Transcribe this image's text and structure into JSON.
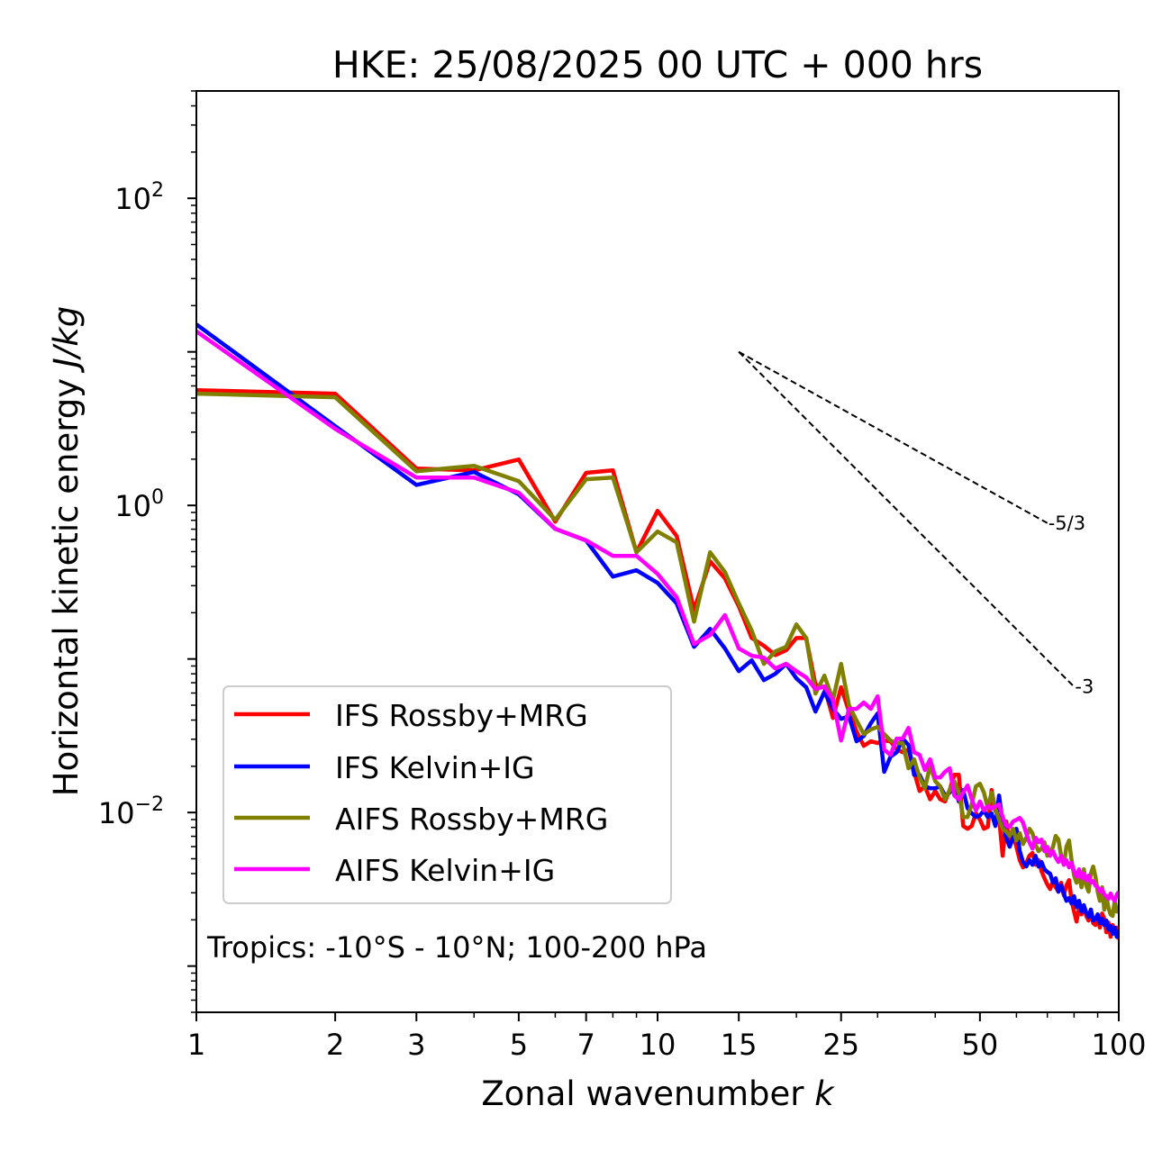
{
  "chart_data": {
    "type": "line",
    "title": "HKE: 25/08/2025 00 UTC + 000 hrs",
    "xlabel": "Zonal wavenumber",
    "xlabel_italic": "k",
    "ylabel": "Horizontal kinetic energy",
    "ylabel_italic": "J/kg",
    "xscale": "log",
    "yscale": "log",
    "xlim": [
      1,
      100
    ],
    "ylim": [
      0.0005,
      500
    ],
    "grid": false,
    "x_ticks": [
      {
        "value": 1,
        "label": "1"
      },
      {
        "value": 2,
        "label": "2"
      },
      {
        "value": 3,
        "label": "3"
      },
      {
        "value": 5,
        "label": "5"
      },
      {
        "value": 7,
        "label": "7"
      },
      {
        "value": 10,
        "label": "10"
      },
      {
        "value": 15,
        "label": "15"
      },
      {
        "value": 25,
        "label": "25"
      },
      {
        "value": 50,
        "label": "50"
      },
      {
        "value": 100,
        "label": "100"
      }
    ],
    "x_minor_ticks": [
      4,
      6,
      8,
      9,
      20,
      30,
      40,
      60,
      70,
      80,
      90
    ],
    "y_ticks": [
      {
        "value": 100,
        "base": "10",
        "exp": "2"
      },
      {
        "value": 1,
        "base": "10",
        "exp": "0"
      },
      {
        "value": 0.01,
        "base": "10",
        "exp": "−2"
      }
    ],
    "annotation": "Tropics: -10°S - 10°N; 100-200 hPa",
    "legend_position": "lower-left",
    "reference_slopes": [
      {
        "label": "-5/3",
        "slope": -1.6667,
        "k_start": 15,
        "k_end": 70,
        "y_start": 10
      },
      {
        "label": "-3",
        "slope": -3,
        "k_start": 15,
        "k_end": 80,
        "y_start": 10
      }
    ],
    "x": [
      1,
      2,
      3,
      4,
      5,
      6,
      7,
      8,
      9,
      10,
      11,
      12,
      13,
      14,
      15,
      16,
      17,
      18,
      19,
      20,
      21,
      22,
      23,
      24,
      25,
      26,
      27,
      28,
      29,
      30,
      31,
      32,
      33,
      34,
      35,
      36,
      37,
      38,
      39,
      40,
      41,
      42,
      43,
      44,
      45,
      46,
      47,
      48,
      49,
      50,
      51,
      52,
      53,
      54,
      55,
      56,
      57,
      58,
      59,
      60,
      61,
      62,
      63,
      64,
      65,
      66,
      67,
      68,
      69,
      70,
      71,
      72,
      73,
      74,
      75,
      76,
      77,
      78,
      79,
      80,
      81,
      82,
      83,
      84,
      85,
      86,
      87,
      88,
      89,
      90,
      91,
      92,
      93,
      94,
      95,
      96,
      97,
      98,
      99,
      100
    ],
    "series": [
      {
        "name": "IFS Rossby+MRG",
        "color": "#ff0000",
        "values": [
          5.63,
          5.34,
          1.74,
          1.69,
          1.99,
          0.784,
          1.63,
          1.69,
          0.495,
          0.922,
          0.632,
          0.209,
          0.433,
          0.335,
          0.22,
          0.137,
          0.122,
          0.106,
          0.114,
          0.137,
          0.137,
          0.068,
          0.0654,
          0.0413,
          0.0654,
          0.0454,
          0.0337,
          0.0272,
          0.0291,
          0.0283,
          0.0294,
          0.0291,
          0.0257,
          0.0247,
          0.0257,
          0.0184,
          0.0138,
          0.0148,
          0.0122,
          0.0138,
          0.0122,
          0.0118,
          0.014,
          0.0176,
          0.0176,
          0.00817,
          0.00784,
          0.00817,
          0.00987,
          0.00897,
          0.00784,
          0.00806,
          0.014,
          0.0103,
          0.00935,
          0.00523,
          0.00874,
          0.00623,
          0.00713,
          0.00598,
          0.00489,
          0.00439,
          0.0047,
          0.00523,
          0.00545,
          0.00457,
          0.00489,
          0.00416,
          0.00373,
          0.0034,
          0.00317,
          0.00358,
          0.00326,
          0.00305,
          0.00349,
          0.00289,
          0.00335,
          0.00363,
          0.00266,
          0.00226,
          0.00195,
          0.00239,
          0.00217,
          0.00249,
          0.00212,
          0.00198,
          0.00233,
          0.0019,
          0.00185,
          0.00209,
          0.00178,
          0.0022,
          0.00203,
          0.00166,
          0.00192,
          0.00155,
          0.00185,
          0.00171,
          0.00178,
          0.00149
        ]
      },
      {
        "name": "IFS Kelvin+IG",
        "color": "#0000ff",
        "values": [
          15.1,
          3.28,
          1.36,
          1.65,
          1.18,
          0.704,
          0.591,
          0.344,
          0.378,
          0.313,
          0.23,
          0.12,
          0.157,
          0.117,
          0.0833,
          0.098,
          0.0728,
          0.08,
          0.0929,
          0.0748,
          0.0654,
          0.0454,
          0.0611,
          0.0473,
          0.0407,
          0.0424,
          0.0291,
          0.0315,
          0.0381,
          0.0442,
          0.0184,
          0.0231,
          0.0247,
          0.0303,
          0.0275,
          0.0176,
          0.0176,
          0.0148,
          0.0144,
          0.0144,
          0.0148,
          0.0129,
          0.0135,
          0.0148,
          0.0118,
          0.014,
          0.0107,
          0.00987,
          0.00935,
          0.0096,
          0.0103,
          0.00935,
          0.00987,
          0.00817,
          0.0129,
          0.00861,
          0.00685,
          0.00598,
          0.00685,
          0.00784,
          0.0056,
          0.00476,
          0.00445,
          0.00489,
          0.00457,
          0.00523,
          0.00445,
          0.00476,
          0.00427,
          0.0041,
          0.00399,
          0.00349,
          0.00373,
          0.00305,
          0.00335,
          0.00297,
          0.00266,
          0.00277,
          0.00256,
          0.00285,
          0.00242,
          0.00266,
          0.00226,
          0.00249,
          0.00223,
          0.00209,
          0.00233,
          0.00198,
          0.00203,
          0.00217,
          0.0019,
          0.00203,
          0.00185,
          0.00198,
          0.00173,
          0.00182,
          0.00162,
          0.00178,
          0.00155,
          0.00171
        ]
      },
      {
        "name": "AIFS Rossby+MRG",
        "color": "#808000",
        "values": [
          5.34,
          5.06,
          1.67,
          1.81,
          1.44,
          0.806,
          1.48,
          1.52,
          0.495,
          0.676,
          0.575,
          0.175,
          0.495,
          0.368,
          0.23,
          0.153,
          0.0929,
          0.112,
          0.12,
          0.168,
          0.137,
          0.0595,
          0.0779,
          0.0541,
          0.0929,
          0.0499,
          0.0397,
          0.0324,
          0.0347,
          0.0361,
          0.0324,
          0.0294,
          0.0283,
          0.0283,
          0.0194,
          0.0222,
          0.0169,
          0.0144,
          0.0202,
          0.016,
          0.0148,
          0.0122,
          0.014,
          0.016,
          0.0135,
          0.00935,
          0.00935,
          0.0113,
          0.0148,
          0.0154,
          0.0135,
          0.0107,
          0.0135,
          0.0106,
          0.00897,
          0.00784,
          0.00753,
          0.00704,
          0.00784,
          0.00658,
          0.00733,
          0.00623,
          0.00685,
          0.00784,
          0.00733,
          0.00615,
          0.0056,
          0.00582,
          0.0064,
          0.00523,
          0.00545,
          0.00598,
          0.00704,
          0.00667,
          0.00523,
          0.00457,
          0.00598,
          0.00658,
          0.00489,
          0.00388,
          0.00349,
          0.00399,
          0.00326,
          0.00427,
          0.00335,
          0.00305,
          0.00399,
          0.00445,
          0.00383,
          0.00305,
          0.00266,
          0.00326,
          0.00233,
          0.00285,
          0.00239,
          0.00217,
          0.00212,
          0.00266,
          0.00226,
          0.00242
        ]
      },
      {
        "name": "AIFS Kelvin+IG",
        "color": "#ff00ff",
        "values": [
          13.6,
          3.15,
          1.52,
          1.52,
          1.21,
          0.704,
          0.591,
          0.469,
          0.469,
          0.358,
          0.252,
          0.125,
          0.143,
          0.193,
          0.117,
          0.105,
          0.102,
          0.0868,
          0.0929,
          0.0833,
          0.0758,
          0.0636,
          0.0662,
          0.0541,
          0.0294,
          0.0473,
          0.0473,
          0.052,
          0.0473,
          0.0571,
          0.0257,
          0.0237,
          0.0303,
          0.0303,
          0.0356,
          0.0247,
          0.0237,
          0.0189,
          0.0222,
          0.0169,
          0.0169,
          0.0184,
          0.0194,
          0.0129,
          0.0122,
          0.0135,
          0.015,
          0.0122,
          0.0103,
          0.0118,
          0.0103,
          0.011,
          0.0106,
          0.011,
          0.0113,
          0.00935,
          0.00817,
          0.00806,
          0.00874,
          0.00897,
          0.00922,
          0.00861,
          0.00733,
          0.0064,
          0.00582,
          0.00685,
          0.0064,
          0.00667,
          0.0056,
          0.00598,
          0.00523,
          0.0056,
          0.00509,
          0.00476,
          0.00523,
          0.00457,
          0.00489,
          0.00439,
          0.0047,
          0.00416,
          0.00383,
          0.00427,
          0.00373,
          0.00399,
          0.00363,
          0.00388,
          0.00349,
          0.00358,
          0.00335,
          0.00326,
          0.00305,
          0.00317,
          0.00292,
          0.00285,
          0.00274,
          0.00297,
          0.00277,
          0.00266,
          0.00292,
          0.00305
        ]
      }
    ]
  }
}
